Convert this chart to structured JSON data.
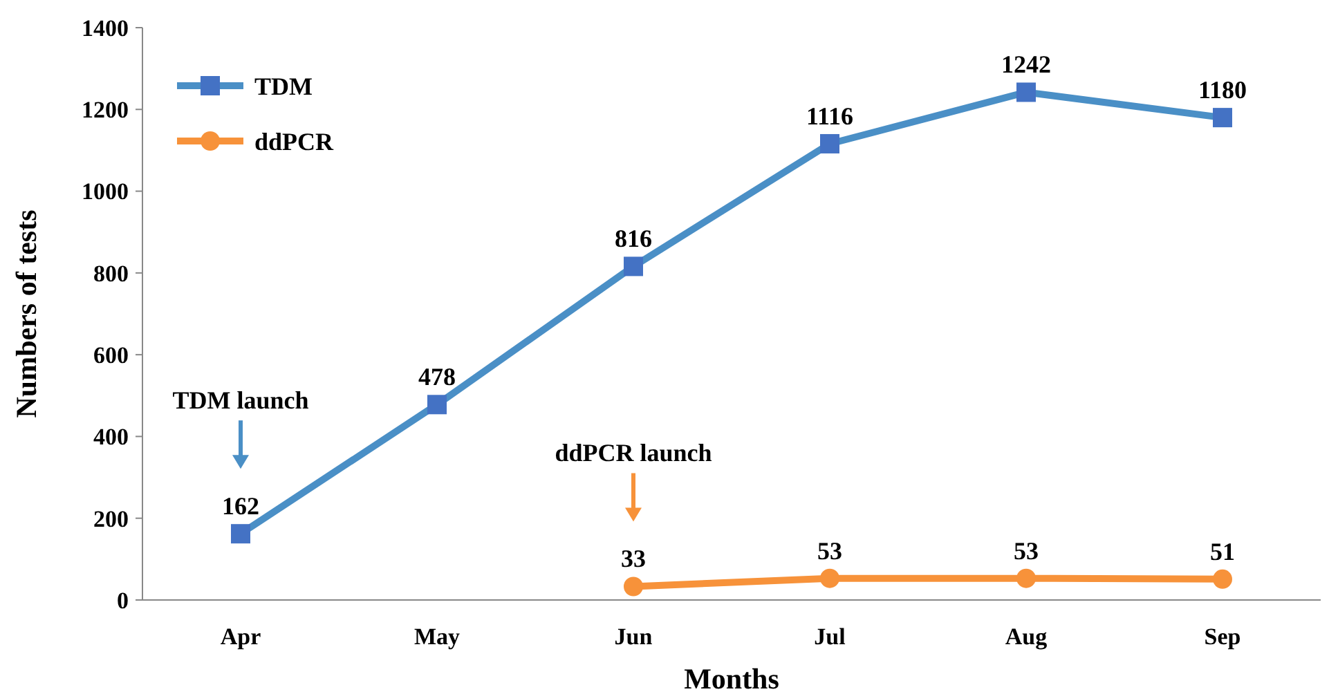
{
  "chart_data": {
    "type": "line",
    "xlabel": "Months",
    "ylabel": "Numbers of tests",
    "categories": [
      "Apr",
      "May",
      "Jun",
      "Jul",
      "Aug",
      "Sep"
    ],
    "series": [
      {
        "name": "TDM",
        "color": "#4a8fc6",
        "marker": "square",
        "values": [
          162,
          478,
          816,
          1116,
          1242,
          1180
        ]
      },
      {
        "name": "ddPCR",
        "color": "#f7923a",
        "marker": "circle",
        "values": [
          null,
          null,
          33,
          53,
          53,
          51
        ]
      }
    ],
    "annotations": [
      "TDM launch",
      "ddPCR launch"
    ],
    "ylim": [
      0,
      1400
    ],
    "yticks": [
      0,
      200,
      400,
      600,
      800,
      1000,
      1200,
      1400
    ],
    "data_labels": true,
    "legend": "top left",
    "line_style": "solid"
  }
}
